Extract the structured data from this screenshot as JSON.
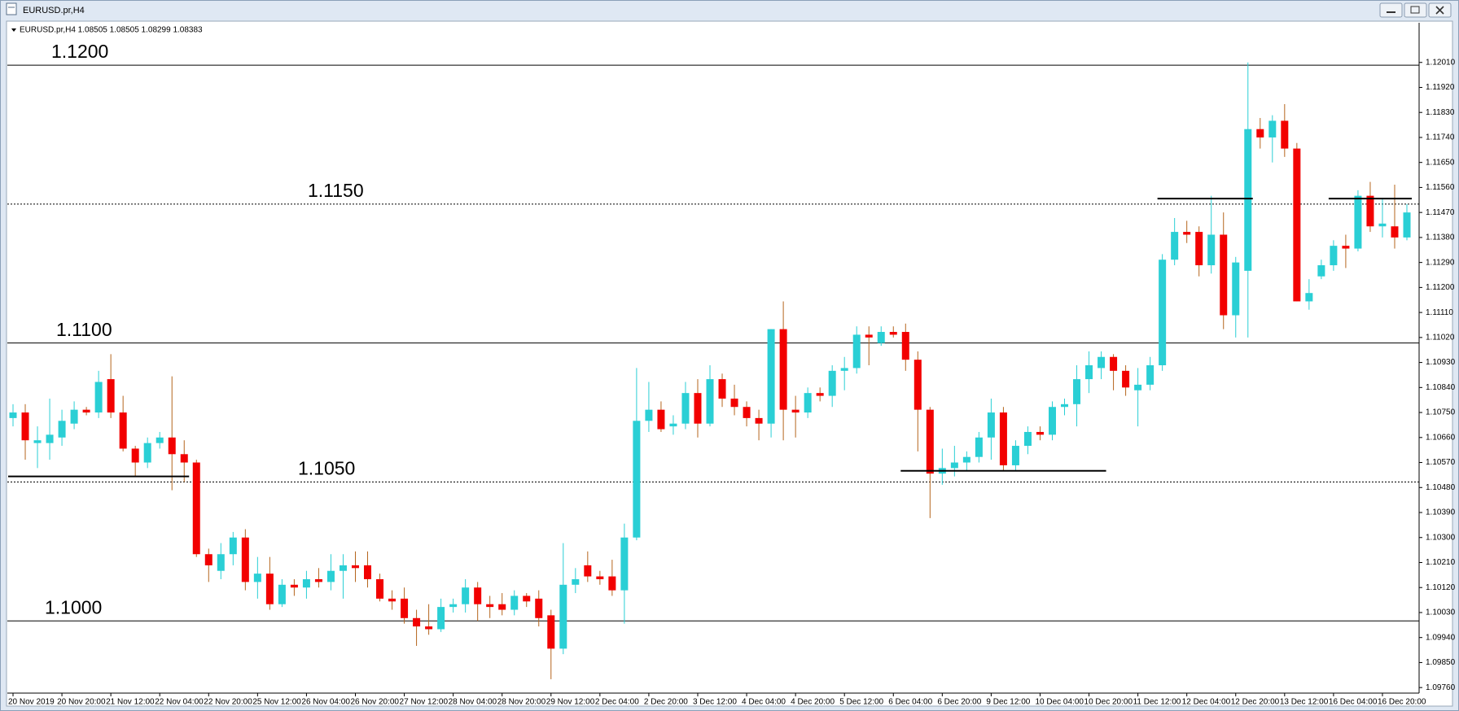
{
  "window_title": "EURUSD.pr,H4",
  "chart_data": {
    "type": "candlestick",
    "title": "EURUSD.pr,H4  1.08505 1.08505 1.08299 1.08383",
    "up_color": "#2acfd5",
    "down_color": "#f20000",
    "wick_color_up": "#2acfd5",
    "wick_color_down": "#b5651d",
    "ylim": [
      1.0974,
      1.121
    ],
    "yticks": [
      {
        "value": 1.1201,
        "label": "1.12010"
      },
      {
        "value": 1.1192,
        "label": "1.11920"
      },
      {
        "value": 1.1183,
        "label": "1.11830"
      },
      {
        "value": 1.1174,
        "label": "1.11740"
      },
      {
        "value": 1.1165,
        "label": "1.11650"
      },
      {
        "value": 1.1156,
        "label": "1.11560"
      },
      {
        "value": 1.1147,
        "label": "1.11470"
      },
      {
        "value": 1.1138,
        "label": "1.11380"
      },
      {
        "value": 1.1129,
        "label": "1.11290"
      },
      {
        "value": 1.112,
        "label": "1.11200"
      },
      {
        "value": 1.1111,
        "label": "1.11110"
      },
      {
        "value": 1.1102,
        "label": "1.11020"
      },
      {
        "value": 1.1093,
        "label": "1.10930"
      },
      {
        "value": 1.1084,
        "label": "1.10840"
      },
      {
        "value": 1.1075,
        "label": "1.10750"
      },
      {
        "value": 1.1066,
        "label": "1.10660"
      },
      {
        "value": 1.1057,
        "label": "1.10570"
      },
      {
        "value": 1.1048,
        "label": "1.10480"
      },
      {
        "value": 1.1039,
        "label": "1.10390"
      },
      {
        "value": 1.103,
        "label": "1.10300"
      },
      {
        "value": 1.1021,
        "label": "1.10210"
      },
      {
        "value": 1.1012,
        "label": "1.10120"
      },
      {
        "value": 1.1003,
        "label": "1.10030"
      },
      {
        "value": 1.0994,
        "label": "1.09940"
      },
      {
        "value": 1.0985,
        "label": "1.09850"
      },
      {
        "value": 1.0976,
        "label": "1.09760"
      }
    ],
    "categories": [
      "20 Nov 2019",
      null,
      null,
      null,
      "20 Nov 20:00",
      null,
      null,
      null,
      "21 Nov 12:00",
      null,
      null,
      null,
      "22 Nov 04:00",
      null,
      null,
      null,
      "22 Nov 20:00",
      null,
      null,
      null,
      "25 Nov 12:00",
      null,
      null,
      null,
      "26 Nov 04:00",
      null,
      null,
      null,
      "26 Nov 20:00",
      null,
      null,
      null,
      "27 Nov 12:00",
      null,
      null,
      null,
      "28 Nov 04:00",
      null,
      null,
      null,
      "28 Nov 20:00",
      null,
      null,
      null,
      "29 Nov 12:00",
      null,
      null,
      null,
      "2 Dec 04:00",
      null,
      null,
      null,
      "2 Dec 20:00",
      null,
      null,
      null,
      "3 Dec 12:00",
      null,
      null,
      null,
      "4 Dec 04:00",
      null,
      null,
      null,
      "4 Dec 20:00",
      null,
      null,
      null,
      "5 Dec 12:00",
      null,
      null,
      null,
      "6 Dec 04:00",
      null,
      null,
      null,
      "6 Dec 20:00",
      null,
      null,
      null,
      "9 Dec 12:00",
      null,
      null,
      null,
      "10 Dec 04:00",
      null,
      null,
      null,
      "10 Dec 20:00",
      null,
      null,
      null,
      "11 Dec 12:00",
      null,
      null,
      null,
      "12 Dec 04:00",
      null,
      null,
      null,
      "12 Dec 20:00",
      null,
      null,
      null,
      "13 Dec 12:00",
      null,
      null,
      null,
      "16 Dec 04:00",
      null,
      null,
      null,
      "16 Dec 20:00",
      null,
      null
    ],
    "open": [
      1.1073,
      1.1075,
      1.1064,
      1.1064,
      1.1066,
      1.1071,
      1.1076,
      1.1075,
      1.1087,
      1.1075,
      1.1062,
      1.1057,
      1.1064,
      1.1066,
      1.106,
      1.1057,
      1.1024,
      1.1018,
      1.1024,
      1.103,
      1.1014,
      1.1017,
      1.1006,
      1.1013,
      1.1012,
      1.1015,
      1.1014,
      1.1018,
      1.102,
      1.102,
      1.1015,
      1.1008,
      1.1008,
      1.1001,
      1.0998,
      1.0997,
      1.1005,
      1.1006,
      1.1012,
      1.1006,
      1.1006,
      1.1004,
      1.1009,
      1.1008,
      1.1002,
      1.099,
      1.1013,
      1.102,
      1.1016,
      1.1016,
      1.1011,
      1.103,
      1.1072,
      1.1076,
      1.107,
      1.1071,
      1.1082,
      1.1071,
      1.1087,
      1.108,
      1.1077,
      1.1073,
      1.1071,
      1.1105,
      1.1076,
      1.1075,
      1.1082,
      1.1081,
      1.109,
      1.1091,
      1.1103,
      1.11,
      1.1104,
      1.1104,
      1.1094,
      1.1076,
      1.1053,
      1.1055,
      1.1057,
      1.1059,
      1.1066,
      1.1075,
      1.1056,
      1.1063,
      1.1068,
      1.1067,
      1.1077,
      1.1078,
      1.1087,
      1.1091,
      1.1095,
      1.109,
      1.1083,
      1.1085,
      1.1092,
      1.113,
      1.114,
      1.114,
      1.1128,
      1.1139,
      1.111,
      1.1126,
      1.1177,
      1.1174,
      1.118,
      1.117,
      1.1115,
      1.1124,
      1.1128,
      1.1135,
      1.1134,
      1.1153,
      1.1142,
      1.1142,
      1.1138
    ],
    "high": [
      1.1078,
      1.1078,
      1.107,
      1.108,
      1.1076,
      1.1079,
      1.1077,
      1.109,
      1.1096,
      1.1081,
      1.1063,
      1.1066,
      1.1068,
      1.1088,
      1.1065,
      1.1058,
      1.1026,
      1.1028,
      1.1032,
      1.1033,
      1.1023,
      1.1023,
      1.1015,
      1.1015,
      1.1018,
      1.1019,
      1.1024,
      1.1024,
      1.1025,
      1.1025,
      1.1017,
      1.1011,
      1.1012,
      1.1004,
      1.1006,
      1.1008,
      1.1008,
      1.1015,
      1.1014,
      1.1009,
      1.101,
      1.1011,
      1.101,
      1.1011,
      1.1004,
      1.1028,
      1.1019,
      1.1025,
      1.1018,
      1.1022,
      1.1035,
      1.1091,
      1.1086,
      1.1079,
      1.1074,
      1.1086,
      1.1087,
      1.1092,
      1.1089,
      1.1085,
      1.1079,
      1.1076,
      1.1105,
      1.1115,
      1.1081,
      1.1084,
      1.1084,
      1.1092,
      1.1095,
      1.1106,
      1.1106,
      1.1106,
      1.1106,
      1.1107,
      1.1097,
      1.1077,
      1.1062,
      1.1063,
      1.1061,
      1.1068,
      1.108,
      1.1077,
      1.1065,
      1.107,
      1.107,
      1.1079,
      1.108,
      1.1092,
      1.1097,
      1.1097,
      1.1096,
      1.1092,
      1.1091,
      1.1095,
      1.1132,
      1.1145,
      1.1144,
      1.1142,
      1.1153,
      1.1147,
      1.1131,
      1.1201,
      1.1181,
      1.1182,
      1.1186,
      1.1172,
      1.1123,
      1.113,
      1.1137,
      1.1139,
      1.1155,
      1.1158,
      1.1152,
      1.1157,
      1.115
    ],
    "low": [
      1.107,
      1.1058,
      1.1055,
      1.1058,
      1.1063,
      1.1069,
      1.1074,
      1.1073,
      1.1073,
      1.1061,
      1.1052,
      1.1055,
      1.1062,
      1.1047,
      1.105,
      1.1023,
      1.1014,
      1.1015,
      1.102,
      1.1011,
      1.1008,
      1.1004,
      1.1005,
      1.1009,
      1.1008,
      1.1012,
      1.1011,
      1.1008,
      1.1014,
      1.1012,
      1.1007,
      1.1004,
      1.0999,
      1.0991,
      1.0995,
      1.0996,
      1.1003,
      1.1003,
      1.1,
      1.1001,
      1.1002,
      1.1002,
      1.1005,
      1.0998,
      1.0979,
      1.0988,
      1.101,
      1.1014,
      1.1013,
      1.1009,
      1.0999,
      1.1029,
      1.1068,
      1.1068,
      1.1067,
      1.1069,
      1.1066,
      1.107,
      1.1077,
      1.1074,
      1.107,
      1.1065,
      1.1066,
      1.1065,
      1.1066,
      1.1073,
      1.1079,
      1.1077,
      1.1083,
      1.1089,
      1.1092,
      1.1099,
      1.1102,
      1.109,
      1.1061,
      1.1037,
      1.1049,
      1.1052,
      1.1054,
      1.1057,
      1.1058,
      1.1054,
      1.1054,
      1.106,
      1.1065,
      1.1065,
      1.1074,
      1.107,
      1.1082,
      1.1087,
      1.1083,
      1.1081,
      1.107,
      1.1083,
      1.109,
      1.1128,
      1.1136,
      1.1124,
      1.1125,
      1.1105,
      1.1102,
      1.1102,
      1.117,
      1.1165,
      1.1167,
      1.1115,
      1.1112,
      1.1123,
      1.1126,
      1.1127,
      1.1133,
      1.114,
      1.1138,
      1.1134,
      1.1137
    ],
    "close": [
      1.1075,
      1.1065,
      1.1065,
      1.1067,
      1.1072,
      1.1076,
      1.1075,
      1.1086,
      1.1075,
      1.1062,
      1.1057,
      1.1064,
      1.1066,
      1.106,
      1.1057,
      1.1024,
      1.102,
      1.1024,
      1.103,
      1.1014,
      1.1017,
      1.1006,
      1.1013,
      1.1012,
      1.1015,
      1.1014,
      1.1018,
      1.102,
      1.1019,
      1.1015,
      1.1008,
      1.1007,
      1.1001,
      1.0998,
      1.0997,
      1.1005,
      1.1006,
      1.1012,
      1.1006,
      1.1005,
      1.1004,
      1.1009,
      1.1007,
      1.1001,
      1.099,
      1.1013,
      1.1015,
      1.1016,
      1.1015,
      1.1011,
      1.103,
      1.1072,
      1.1076,
      1.1069,
      1.1071,
      1.1082,
      1.1071,
      1.1087,
      1.108,
      1.1077,
      1.1073,
      1.1071,
      1.1105,
      1.1076,
      1.1075,
      1.1082,
      1.1081,
      1.109,
      1.1091,
      1.1103,
      1.1102,
      1.1104,
      1.1103,
      1.1094,
      1.1076,
      1.1053,
      1.1055,
      1.1057,
      1.1059,
      1.1066,
      1.1075,
      1.1056,
      1.1063,
      1.1068,
      1.1067,
      1.1077,
      1.1078,
      1.1087,
      1.1092,
      1.1095,
      1.109,
      1.1084,
      1.1085,
      1.1092,
      1.113,
      1.114,
      1.1139,
      1.1128,
      1.1139,
      1.111,
      1.1129,
      1.1177,
      1.1174,
      1.118,
      1.117,
      1.1115,
      1.1118,
      1.1128,
      1.1135,
      1.1134,
      1.1153,
      1.1142,
      1.1143,
      1.1138,
      1.1147
    ],
    "levels": [
      {
        "value": 1.12,
        "label": "1.1200",
        "style": "solid"
      },
      {
        "value": 1.115,
        "label": "1.1150",
        "style": "dotted"
      },
      {
        "value": 1.11,
        "label": "1.1100",
        "style": "solid"
      },
      {
        "value": 1.105,
        "label": "1.1050",
        "style": "dotted"
      },
      {
        "value": 1.1,
        "label": "1.1000",
        "style": "solid"
      }
    ],
    "segments": [
      {
        "value": 1.1052,
        "from": 0,
        "to": 14
      },
      {
        "value": 1.1054,
        "from": 73,
        "to": 89
      },
      {
        "value": 1.1152,
        "from": 94,
        "to": 101
      },
      {
        "value": 1.1152,
        "from": 108,
        "to": 114
      }
    ]
  }
}
